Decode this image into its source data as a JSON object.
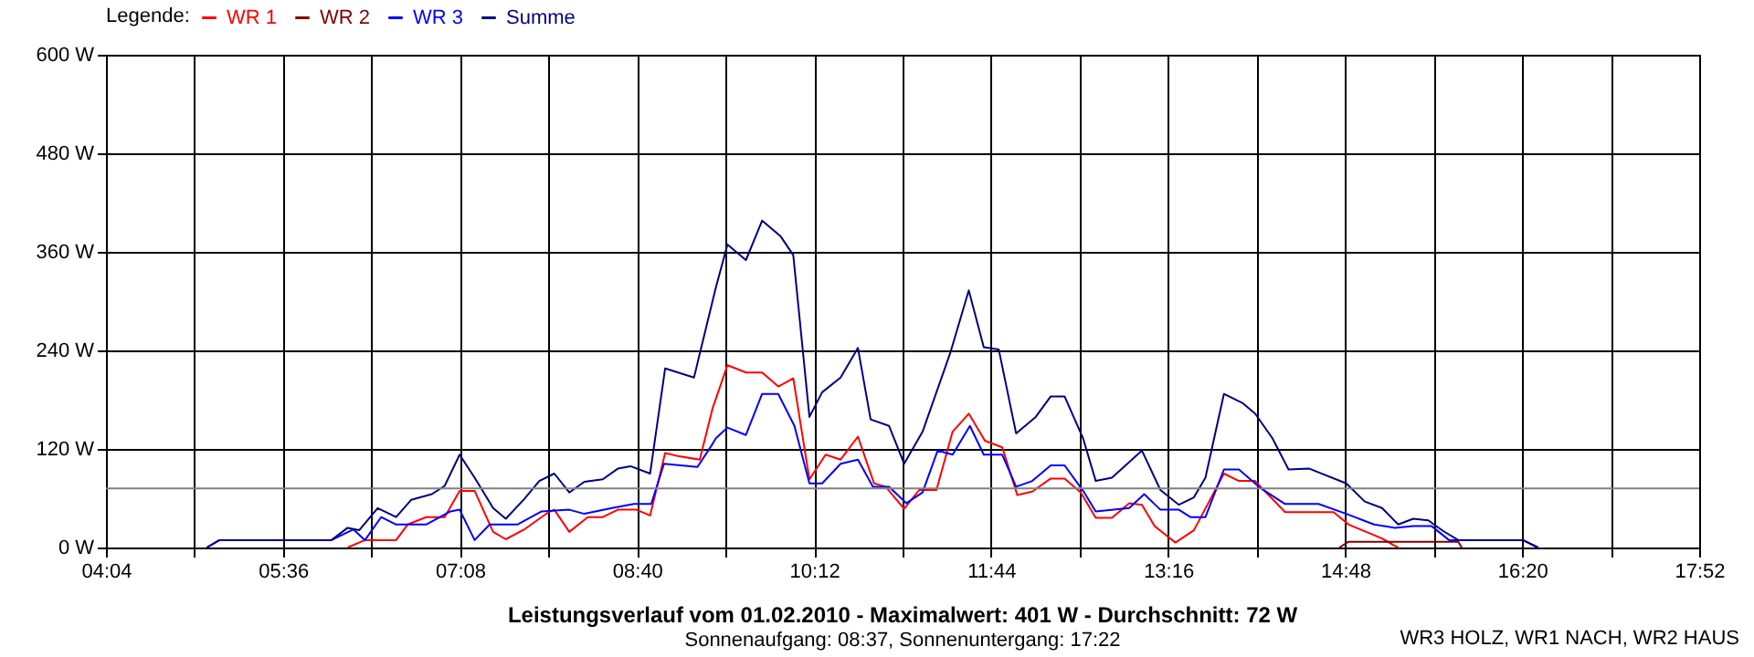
{
  "chart_data": {
    "type": "line",
    "title": "Leistungsverlauf vom 01.02.2010 - Maximalwert: 401 W - Durchschnitt: 72 W",
    "subtitle": "Sonnenaufgang: 08:37, Sonnenuntergang: 17:22",
    "legend_title": "Legende:",
    "annotations": [
      "WR3 HOLZ, WR1 NACH, WR2 HAUS"
    ],
    "xlim": [
      4.0667,
      17.8667
    ],
    "xticks": [
      {
        "value": 4.0667,
        "label": "04:04"
      },
      {
        "value": 4.8333,
        "label": null
      },
      {
        "value": 5.6,
        "label": "05:36"
      },
      {
        "value": 6.3667,
        "label": null
      },
      {
        "value": 7.1333,
        "label": "07:08"
      },
      {
        "value": 7.9,
        "label": null
      },
      {
        "value": 8.6667,
        "label": "08:40"
      },
      {
        "value": 9.4333,
        "label": null
      },
      {
        "value": 10.2,
        "label": "10:12"
      },
      {
        "value": 10.9667,
        "label": null
      },
      {
        "value": 11.7333,
        "label": "11:44"
      },
      {
        "value": 12.5,
        "label": null
      },
      {
        "value": 13.2667,
        "label": "13:16"
      },
      {
        "value": 14.0333,
        "label": null
      },
      {
        "value": 14.8,
        "label": "14:48"
      },
      {
        "value": 15.5667,
        "label": null
      },
      {
        "value": 16.3333,
        "label": "16:20"
      },
      {
        "value": 17.1,
        "label": null
      },
      {
        "value": 17.8667,
        "label": "17:52"
      }
    ],
    "ylim": [
      0,
      600
    ],
    "yticks": [
      {
        "value": 0,
        "label": "0 W"
      },
      {
        "value": 120,
        "label": "120 W"
      },
      {
        "value": 240,
        "label": "240 W"
      },
      {
        "value": 360,
        "label": "360 W"
      },
      {
        "value": 480,
        "label": "480 W"
      },
      {
        "value": 600,
        "label": "600 W"
      }
    ],
    "grid": true,
    "legend": "top left",
    "line_style": "solid",
    "marker": "none",
    "ref_lines": [
      {
        "axis": "y",
        "value": 72,
        "color": "#808080"
      }
    ],
    "series": [
      {
        "name": "WR 1",
        "color": "#ff0000",
        "x": [
          6.16,
          6.31,
          6.58,
          6.68,
          6.84,
          7.0,
          7.13,
          7.26,
          7.42,
          7.53,
          7.69,
          7.9,
          7.95,
          8.08,
          8.24,
          8.37,
          8.5,
          8.66,
          8.78,
          8.91,
          9.03,
          9.21,
          9.32,
          9.45,
          9.61,
          9.75,
          9.89,
          10.02,
          10.16,
          10.3,
          10.43,
          10.58,
          10.72,
          10.82,
          10.98,
          11.11,
          11.26,
          11.4,
          11.54,
          11.68,
          11.83,
          11.96,
          12.09,
          12.25,
          12.37,
          12.51,
          12.64,
          12.78,
          12.93,
          13.04,
          13.15,
          13.33,
          13.49,
          13.75,
          13.88,
          14.02,
          14.28,
          14.7,
          14.83,
          15.12,
          15.23,
          15.26
        ],
        "values": [
          0,
          9,
          9,
          28,
          37,
          37,
          69,
          69,
          19,
          10,
          22,
          43,
          46,
          19,
          37,
          37,
          46,
          46,
          39,
          115,
          111,
          107,
          169,
          222,
          213,
          213,
          196,
          206,
          83,
          113,
          107,
          135,
          78,
          74,
          47,
          70,
          70,
          141,
          163,
          130,
          122,
          64,
          68,
          84,
          84,
          67,
          36,
          36,
          54,
          52,
          26,
          6,
          21,
          90,
          81,
          81,
          43,
          43,
          28,
          11,
          2,
          0
        ]
      },
      {
        "name": "WR 2",
        "color": "#800000",
        "x": [
          14.75,
          14.83,
          15.78,
          15.81
        ],
        "values": [
          0,
          7,
          7,
          0
        ]
      },
      {
        "name": "WR 3",
        "color": "#0000ff",
        "x": [
          4.94,
          5.05,
          6.02,
          6.21,
          6.31,
          6.45,
          6.58,
          6.84,
          7.05,
          7.13,
          7.26,
          7.39,
          7.63,
          7.84,
          8.08,
          8.21,
          8.45,
          8.64,
          8.79,
          8.9,
          9.19,
          9.32,
          9.35,
          9.45,
          9.61,
          9.75,
          9.89,
          10.03,
          10.16,
          10.27,
          10.43,
          10.58,
          10.71,
          10.85,
          11.0,
          11.14,
          11.27,
          11.4,
          11.55,
          11.67,
          11.83,
          11.95,
          12.09,
          12.25,
          12.37,
          12.54,
          12.64,
          12.93,
          13.06,
          13.2,
          13.36,
          13.46,
          13.59,
          13.75,
          13.88,
          14.07,
          14.28,
          14.57,
          14.81,
          15.05,
          15.23,
          15.39,
          15.55,
          15.7,
          16.34,
          16.47
        ],
        "values": [
          0,
          9,
          9,
          22,
          9,
          37,
          28,
          28,
          44,
          46,
          9,
          28,
          28,
          44,
          46,
          41,
          48,
          53,
          53,
          102,
          98,
          126,
          133,
          146,
          137,
          187,
          187,
          148,
          78,
          78,
          102,
          107,
          74,
          74,
          54,
          67,
          118,
          113,
          148,
          113,
          113,
          74,
          81,
          100,
          100,
          67,
          44,
          48,
          65,
          46,
          46,
          37,
          37,
          95,
          95,
          72,
          53,
          53,
          41,
          28,
          24,
          26,
          26,
          9,
          9,
          0
        ]
      },
      {
        "name": "Summe",
        "color": "#000080",
        "x": [
          4.94,
          5.05,
          6.02,
          6.16,
          6.26,
          6.42,
          6.58,
          6.71,
          6.89,
          7.0,
          7.13,
          7.26,
          7.42,
          7.53,
          7.69,
          7.82,
          7.95,
          8.08,
          8.21,
          8.37,
          8.5,
          8.61,
          8.78,
          8.91,
          9.16,
          9.35,
          9.45,
          9.61,
          9.75,
          9.91,
          10.02,
          10.16,
          10.27,
          10.43,
          10.58,
          10.69,
          10.85,
          10.98,
          11.14,
          11.38,
          11.54,
          11.67,
          11.8,
          11.95,
          12.12,
          12.25,
          12.37,
          12.53,
          12.64,
          12.78,
          13.04,
          13.2,
          13.36,
          13.49,
          13.59,
          13.75,
          13.91,
          14.02,
          14.17,
          14.31,
          14.49,
          14.81,
          14.97,
          15.12,
          15.26,
          15.39,
          15.52,
          15.65,
          15.78,
          16.34,
          16.47
        ],
        "values": [
          0,
          9,
          9,
          24,
          21,
          48,
          37,
          58,
          65,
          75,
          113,
          85,
          48,
          35,
          59,
          81,
          90,
          67,
          80,
          83,
          96,
          99,
          90,
          218,
          207,
          317,
          369,
          350,
          398,
          379,
          356,
          159,
          189,
          207,
          243,
          156,
          148,
          102,
          141,
          237,
          313,
          244,
          241,
          139,
          159,
          184,
          184,
          133,
          81,
          85,
          118,
          70,
          52,
          61,
          85,
          187,
          176,
          163,
          133,
          95,
          96,
          78,
          56,
          48,
          28,
          35,
          33,
          20,
          9,
          9,
          0
        ]
      }
    ]
  }
}
